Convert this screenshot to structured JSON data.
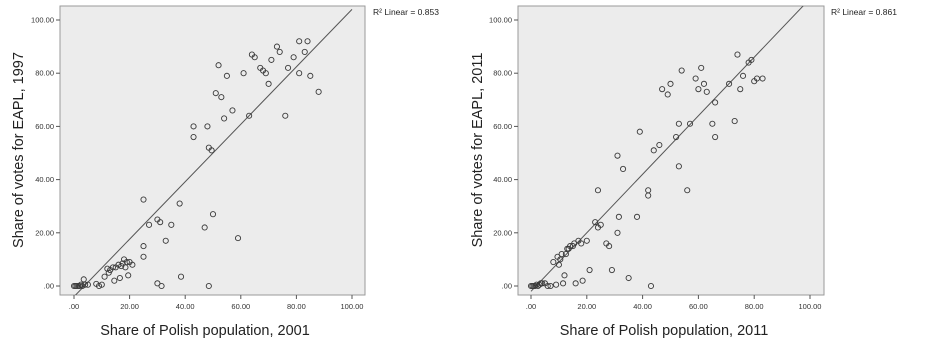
{
  "chart_data": [
    {
      "type": "scatter",
      "title": "",
      "xlabel": "Share of Polish population, 2001",
      "ylabel": "Share of votes for EAPL, 1997",
      "xlim": [
        0,
        100
      ],
      "ylim": [
        0,
        100
      ],
      "xticks": [
        ".00",
        "20.00",
        "40.00",
        "60.00",
        "80.00",
        "100.00"
      ],
      "yticks": [
        ".00",
        "20.00",
        "40.00",
        "60.00",
        "80.00",
        "100.00"
      ],
      "fit_line": {
        "label": "R² Linear = 0.853",
        "from": [
          0,
          -4
        ],
        "to": [
          100,
          104
        ]
      },
      "grid": false,
      "points": [
        [
          0,
          0
        ],
        [
          0.5,
          0
        ],
        [
          1,
          0
        ],
        [
          1.5,
          0
        ],
        [
          2,
          0
        ],
        [
          2.5,
          0.5
        ],
        [
          3,
          0
        ],
        [
          3.5,
          2.5
        ],
        [
          4,
          0.5
        ],
        [
          5,
          0.5
        ],
        [
          8,
          0.8
        ],
        [
          9,
          0
        ],
        [
          10,
          0.5
        ],
        [
          11,
          3.5
        ],
        [
          12,
          6.5
        ],
        [
          13,
          6
        ],
        [
          12.5,
          5
        ],
        [
          14,
          7
        ],
        [
          14.5,
          2
        ],
        [
          15,
          7
        ],
        [
          16,
          8
        ],
        [
          17,
          7.5
        ],
        [
          16.5,
          3
        ],
        [
          17.5,
          8.5
        ],
        [
          18,
          10
        ],
        [
          19,
          9
        ],
        [
          18.5,
          7
        ],
        [
          20,
          9
        ],
        [
          19.5,
          4
        ],
        [
          21,
          8
        ],
        [
          25,
          11
        ],
        [
          25,
          15
        ],
        [
          25,
          32.5
        ],
        [
          27,
          23
        ],
        [
          31,
          24
        ],
        [
          30,
          25
        ],
        [
          30,
          1
        ],
        [
          31.5,
          0
        ],
        [
          33,
          17
        ],
        [
          35,
          23
        ],
        [
          38,
          31
        ],
        [
          38.5,
          3.5
        ],
        [
          43,
          56
        ],
        [
          43,
          60
        ],
        [
          47,
          22
        ],
        [
          48,
          60
        ],
        [
          48.5,
          52
        ],
        [
          49.5,
          51
        ],
        [
          48.5,
          0
        ],
        [
          50,
          27
        ],
        [
          51,
          72.5
        ],
        [
          52,
          83
        ],
        [
          53,
          71
        ],
        [
          54,
          63
        ],
        [
          55,
          79
        ],
        [
          57,
          66
        ],
        [
          59,
          18
        ],
        [
          61,
          80
        ],
        [
          63,
          64
        ],
        [
          64,
          87
        ],
        [
          65,
          86
        ],
        [
          67,
          82
        ],
        [
          68,
          81
        ],
        [
          69,
          80
        ],
        [
          70,
          76
        ],
        [
          71,
          85
        ],
        [
          73,
          90
        ],
        [
          74,
          88
        ],
        [
          76,
          64
        ],
        [
          77,
          82
        ],
        [
          79,
          86
        ],
        [
          81,
          92
        ],
        [
          81,
          80
        ],
        [
          83,
          88
        ],
        [
          84,
          92
        ],
        [
          85,
          79
        ],
        [
          88,
          73
        ]
      ]
    },
    {
      "type": "scatter",
      "title": "",
      "xlabel": "Share of Polish population, 2011",
      "ylabel": "Share of votes for EAPL, 2011",
      "xlim": [
        0,
        100
      ],
      "ylim": [
        0,
        100
      ],
      "xticks": [
        ".00",
        "20.00",
        "40.00",
        "60.00",
        "80.00",
        "100.00"
      ],
      "yticks": [
        ".00",
        "20.00",
        "40.00",
        "60.00",
        "80.00",
        "100.00"
      ],
      "fit_line": {
        "label": "R² Linear = 0.861",
        "from": [
          0,
          -2
        ],
        "to": [
          100,
          108
        ]
      },
      "grid": false,
      "points": [
        [
          0,
          0
        ],
        [
          0.5,
          0
        ],
        [
          1,
          0
        ],
        [
          1.5,
          0
        ],
        [
          2,
          0.5
        ],
        [
          2.5,
          0
        ],
        [
          3,
          0.5
        ],
        [
          3.5,
          1
        ],
        [
          4,
          1
        ],
        [
          5,
          1
        ],
        [
          6,
          0
        ],
        [
          7,
          0
        ],
        [
          8,
          9
        ],
        [
          9,
          0.5
        ],
        [
          9.5,
          11
        ],
        [
          10,
          8
        ],
        [
          10.5,
          10
        ],
        [
          11,
          12
        ],
        [
          11.5,
          1
        ],
        [
          12,
          4
        ],
        [
          12.5,
          12
        ],
        [
          13,
          14
        ],
        [
          13.5,
          14
        ],
        [
          14,
          15
        ],
        [
          15,
          15
        ],
        [
          15.5,
          16
        ],
        [
          16,
          1
        ],
        [
          17,
          17
        ],
        [
          18,
          16
        ],
        [
          18.5,
          2
        ],
        [
          20,
          17
        ],
        [
          21,
          6
        ],
        [
          23,
          24
        ],
        [
          24,
          36
        ],
        [
          24,
          22
        ],
        [
          25,
          23
        ],
        [
          27,
          16
        ],
        [
          28,
          15
        ],
        [
          29,
          6
        ],
        [
          31,
          49
        ],
        [
          31,
          20
        ],
        [
          31.5,
          26
        ],
        [
          33,
          44
        ],
        [
          35,
          3
        ],
        [
          38,
          26
        ],
        [
          39,
          58
        ],
        [
          42,
          34
        ],
        [
          42,
          36
        ],
        [
          43,
          0
        ],
        [
          44,
          51
        ],
        [
          46,
          53
        ],
        [
          47,
          74
        ],
        [
          49,
          72
        ],
        [
          50,
          76
        ],
        [
          52,
          56
        ],
        [
          53,
          61
        ],
        [
          53,
          45
        ],
        [
          54,
          81
        ],
        [
          56,
          36
        ],
        [
          57,
          61
        ],
        [
          59,
          78
        ],
        [
          60,
          74
        ],
        [
          61,
          82
        ],
        [
          62,
          76
        ],
        [
          63,
          73
        ],
        [
          65,
          61
        ],
        [
          66,
          56
        ],
        [
          66,
          69
        ],
        [
          71,
          76
        ],
        [
          73,
          62
        ],
        [
          74,
          87
        ],
        [
          75,
          74
        ],
        [
          76,
          79
        ],
        [
          78,
          84
        ],
        [
          79,
          85
        ],
        [
          80,
          77
        ],
        [
          81,
          78
        ],
        [
          83,
          78
        ]
      ]
    }
  ]
}
